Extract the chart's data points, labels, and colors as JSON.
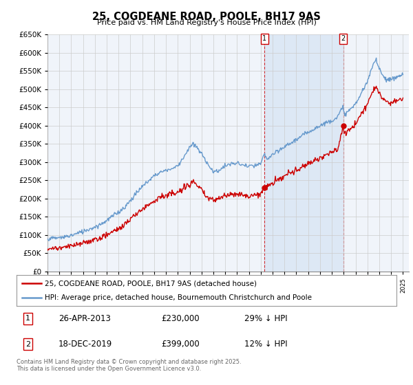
{
  "title": "25, COGDEANE ROAD, POOLE, BH17 9AS",
  "subtitle": "Price paid vs. HM Land Registry's House Price Index (HPI)",
  "legend_line1": "25, COGDEANE ROAD, POOLE, BH17 9AS (detached house)",
  "legend_line2": "HPI: Average price, detached house, Bournemouth Christchurch and Poole",
  "annotation1_date": "26-APR-2013",
  "annotation1_price": "£230,000",
  "annotation1_note": "29% ↓ HPI",
  "annotation2_date": "18-DEC-2019",
  "annotation2_price": "£399,000",
  "annotation2_note": "12% ↓ HPI",
  "footer": "Contains HM Land Registry data © Crown copyright and database right 2025.\nThis data is licensed under the Open Government Licence v3.0.",
  "red_color": "#cc0000",
  "blue_color": "#6699cc",
  "shade_color": "#dde8f5",
  "ylim_min": 0,
  "ylim_max": 650000,
  "background_color": "#ffffff",
  "chart_bg": "#f0f4fa",
  "grid_color": "#cccccc",
  "purchase1_year": 2013.32,
  "purchase1_price": 230000,
  "purchase2_year": 2019.96,
  "purchase2_price": 399000,
  "hpi_points": [
    [
      1995.0,
      90000
    ],
    [
      1995.5,
      91000
    ],
    [
      1996.0,
      92500
    ],
    [
      1996.5,
      95000
    ],
    [
      1997.0,
      99000
    ],
    [
      1997.5,
      104000
    ],
    [
      1998.0,
      110000
    ],
    [
      1998.5,
      116000
    ],
    [
      1999.0,
      122000
    ],
    [
      1999.5,
      130000
    ],
    [
      2000.0,
      140000
    ],
    [
      2000.5,
      152000
    ],
    [
      2001.0,
      163000
    ],
    [
      2001.5,
      176000
    ],
    [
      2002.0,
      195000
    ],
    [
      2002.5,
      215000
    ],
    [
      2003.0,
      233000
    ],
    [
      2003.5,
      248000
    ],
    [
      2004.0,
      263000
    ],
    [
      2004.5,
      272000
    ],
    [
      2005.0,
      278000
    ],
    [
      2005.5,
      282000
    ],
    [
      2006.0,
      290000
    ],
    [
      2006.5,
      315000
    ],
    [
      2007.0,
      340000
    ],
    [
      2007.25,
      350000
    ],
    [
      2007.5,
      343000
    ],
    [
      2007.75,
      335000
    ],
    [
      2008.0,
      322000
    ],
    [
      2008.5,
      298000
    ],
    [
      2009.0,
      272000
    ],
    [
      2009.5,
      278000
    ],
    [
      2010.0,
      290000
    ],
    [
      2010.5,
      295000
    ],
    [
      2011.0,
      297000
    ],
    [
      2011.5,
      292000
    ],
    [
      2012.0,
      288000
    ],
    [
      2012.5,
      290000
    ],
    [
      2013.0,
      295000
    ],
    [
      2013.32,
      323000
    ],
    [
      2013.5,
      308000
    ],
    [
      2014.0,
      320000
    ],
    [
      2014.5,
      330000
    ],
    [
      2015.0,
      342000
    ],
    [
      2015.5,
      352000
    ],
    [
      2016.0,
      362000
    ],
    [
      2016.5,
      372000
    ],
    [
      2017.0,
      383000
    ],
    [
      2017.5,
      392000
    ],
    [
      2018.0,
      400000
    ],
    [
      2018.5,
      408000
    ],
    [
      2019.0,
      415000
    ],
    [
      2019.5,
      425000
    ],
    [
      2019.96,
      453000
    ],
    [
      2020.0,
      432000
    ],
    [
      2020.5,
      442000
    ],
    [
      2021.0,
      460000
    ],
    [
      2021.5,
      490000
    ],
    [
      2022.0,
      520000
    ],
    [
      2022.25,
      545000
    ],
    [
      2022.5,
      570000
    ],
    [
      2022.75,
      582000
    ],
    [
      2023.0,
      560000
    ],
    [
      2023.25,
      540000
    ],
    [
      2023.5,
      530000
    ],
    [
      2023.75,
      528000
    ],
    [
      2024.0,
      525000
    ],
    [
      2024.5,
      535000
    ],
    [
      2025.0,
      540000
    ]
  ],
  "red_points": [
    [
      1995.0,
      62000
    ],
    [
      1995.5,
      63000
    ],
    [
      1996.0,
      64500
    ],
    [
      1996.5,
      66000
    ],
    [
      1997.0,
      69000
    ],
    [
      1997.5,
      73000
    ],
    [
      1998.0,
      78000
    ],
    [
      1998.5,
      83000
    ],
    [
      1999.0,
      87000
    ],
    [
      1999.5,
      93000
    ],
    [
      2000.0,
      100000
    ],
    [
      2000.5,
      109000
    ],
    [
      2001.0,
      118000
    ],
    [
      2001.5,
      128000
    ],
    [
      2002.0,
      143000
    ],
    [
      2002.5,
      158000
    ],
    [
      2003.0,
      172000
    ],
    [
      2003.5,
      183000
    ],
    [
      2004.0,
      195000
    ],
    [
      2004.5,
      205000
    ],
    [
      2005.0,
      208000
    ],
    [
      2005.5,
      213000
    ],
    [
      2006.0,
      215000
    ],
    [
      2006.5,
      228000
    ],
    [
      2007.0,
      240000
    ],
    [
      2007.25,
      248000
    ],
    [
      2007.5,
      240000
    ],
    [
      2007.75,
      232000
    ],
    [
      2008.0,
      221000
    ],
    [
      2008.5,
      202000
    ],
    [
      2009.0,
      197000
    ],
    [
      2009.5,
      200000
    ],
    [
      2010.0,
      208000
    ],
    [
      2010.5,
      213000
    ],
    [
      2011.0,
      215000
    ],
    [
      2011.5,
      210000
    ],
    [
      2012.0,
      206000
    ],
    [
      2012.5,
      210000
    ],
    [
      2013.0,
      215000
    ],
    [
      2013.32,
      230000
    ],
    [
      2013.5,
      232000
    ],
    [
      2014.0,
      242000
    ],
    [
      2014.5,
      252000
    ],
    [
      2015.0,
      262000
    ],
    [
      2015.5,
      270000
    ],
    [
      2016.0,
      278000
    ],
    [
      2016.5,
      286000
    ],
    [
      2017.0,
      296000
    ],
    [
      2017.5,
      305000
    ],
    [
      2018.0,
      313000
    ],
    [
      2018.5,
      320000
    ],
    [
      2019.0,
      327000
    ],
    [
      2019.5,
      333000
    ],
    [
      2019.96,
      399000
    ],
    [
      2020.0,
      380000
    ],
    [
      2020.5,
      390000
    ],
    [
      2021.0,
      407000
    ],
    [
      2021.5,
      433000
    ],
    [
      2022.0,
      460000
    ],
    [
      2022.25,
      480000
    ],
    [
      2022.5,
      500000
    ],
    [
      2022.75,
      510000
    ],
    [
      2023.0,
      490000
    ],
    [
      2023.25,
      475000
    ],
    [
      2023.5,
      470000
    ],
    [
      2023.75,
      465000
    ],
    [
      2024.0,
      462000
    ],
    [
      2024.5,
      470000
    ],
    [
      2025.0,
      475000
    ]
  ]
}
